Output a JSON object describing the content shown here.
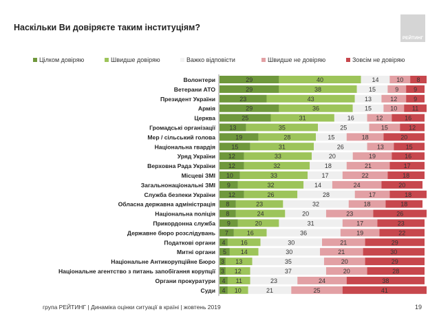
{
  "header": {
    "title": "Наскільки Ви довіряєте таким інституціям?",
    "logo_text": "РЕЙТИНГ"
  },
  "footer": {
    "text": "група РЕЙТИНГ |  Динаміка оцінки ситуації в країні  |  жовтень  2019",
    "page": "19"
  },
  "chart_data": {
    "type": "bar",
    "orientation": "horizontal",
    "stacked": true,
    "legend_position": "top",
    "grid": false,
    "series_names": [
      "Цілком довіряю",
      "Швидше довіряю",
      "Важко відповісти",
      "Швидше не довіряю",
      "Зовсім не довіряю"
    ],
    "colors": [
      "#6f983c",
      "#9dc45a",
      "#efefef",
      "#e2a0a4",
      "#c7474d"
    ],
    "categories": [
      "Волонтери",
      "Ветерани АТО",
      "Президент України",
      "Армія",
      "Церква",
      "Громадські організації",
      "Мер / сільський голова",
      "Національна гвардія",
      "Уряд України",
      "Верховна Рада України",
      "Місцеві ЗМІ",
      "Загальнонаціональні ЗМІ",
      "Служба безпеки України",
      "Обласна державна адміністрація",
      "Національна поліція",
      "Прикордонна служба",
      "Державне бюро розслідувань",
      "Податкові органи",
      "Митні органи",
      "Національне Антикорупційне Бюро",
      "Національне агентство з питань запобігання корупції",
      "Органи прокуратури",
      "Суди"
    ],
    "values": [
      [
        29,
        40,
        14,
        10,
        8
      ],
      [
        29,
        38,
        15,
        9,
        9
      ],
      [
        23,
        43,
        13,
        12,
        9
      ],
      [
        29,
        36,
        15,
        10,
        11
      ],
      [
        25,
        31,
        16,
        12,
        16
      ],
      [
        13,
        35,
        25,
        15,
        12
      ],
      [
        19,
        28,
        15,
        18,
        20
      ],
      [
        15,
        31,
        26,
        13,
        15
      ],
      [
        12,
        33,
        20,
        19,
        16
      ],
      [
        12,
        32,
        18,
        21,
        17
      ],
      [
        10,
        33,
        17,
        22,
        18
      ],
      [
        9,
        32,
        14,
        24,
        20
      ],
      [
        12,
        26,
        28,
        17,
        18
      ],
      [
        8,
        23,
        32,
        18,
        18
      ],
      [
        8,
        24,
        20,
        23,
        26
      ],
      [
        9,
        20,
        31,
        17,
        23
      ],
      [
        7,
        16,
        36,
        19,
        22
      ],
      [
        4,
        16,
        30,
        21,
        29
      ],
      [
        5,
        14,
        30,
        21,
        30
      ],
      [
        3,
        13,
        35,
        20,
        29
      ],
      [
        3,
        12,
        37,
        20,
        28
      ],
      [
        4,
        11,
        23,
        24,
        38
      ],
      [
        4,
        10,
        21,
        25,
        41
      ]
    ]
  }
}
